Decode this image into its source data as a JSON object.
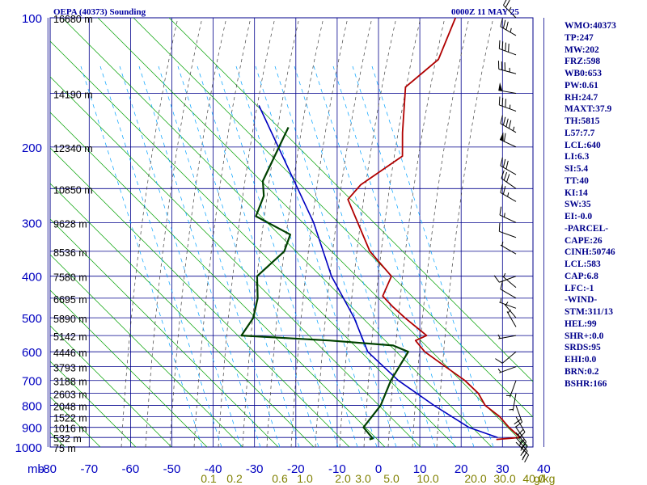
{
  "header": {
    "title_left": "OEPA (40373) Sounding",
    "title_right": "0000Z 11 MAY 25"
  },
  "indices": [
    "WMO:40373",
    "TP:247",
    "MW:202",
    "FRZ:598",
    "WB0:653",
    "PW:0.61",
    "RH:24.7",
    "MAXT:37.9",
    "TH:5815",
    "L57:7.7",
    "LCL:640",
    "LI:6.3",
    "SI:5.4",
    "TT:40",
    "KI:14",
    "SW:35",
    "EI:-0.0",
    "-PARCEL-",
    "CAPE:26",
    "CINH:50746",
    "LCL:583",
    "CAP:6.8",
    "LFC:-1",
    "-WIND-",
    "STM:311/13",
    "HEL:99",
    "SHR+:0.0",
    "SRDS:95",
    "EHI:0.0",
    "BRN:0.2",
    "BSHR:166"
  ],
  "colors": {
    "grid": "#00008b",
    "temperature": "#b00000",
    "dewpoint": "#004000",
    "parcel": "#0000c0",
    "dry_adiabat": "#00a000",
    "moist_adiabat": "#404040",
    "mixing_ratio": "#00a0ff",
    "axis_text": "#0000c0",
    "mixing_ratio_text": "#808000"
  },
  "chart_data": {
    "type": "skew-t",
    "pressure_ticks": [
      "100",
      "200",
      "300",
      "400",
      "500",
      "600",
      "700",
      "800",
      "900",
      "1000"
    ],
    "pressure_levels": [
      100,
      150,
      200,
      250,
      300,
      350,
      400,
      450,
      500,
      550,
      600,
      650,
      700,
      750,
      800,
      850,
      900,
      950,
      1000
    ],
    "temp_ticks": [
      "-80",
      "-70",
      "-60",
      "-50",
      "-40",
      "-30",
      "-20",
      "-10",
      "0",
      "10",
      "20",
      "30",
      "40"
    ],
    "x_axis_unit": "mb",
    "mixing_ratio_labels": [
      "0.1",
      "0.2",
      "0.6",
      "1.0",
      "2.0",
      "3.0",
      "5.0",
      "10.0",
      "20.0",
      "30.0",
      "40.0"
    ],
    "mixing_ratio_unit": "g/kg",
    "height_labels": [
      {
        "p": 100,
        "text": "16680 m"
      },
      {
        "p": 150,
        "text": "14190 m"
      },
      {
        "p": 200,
        "text": "12340 m"
      },
      {
        "p": 250,
        "text": "10850 m"
      },
      {
        "p": 300,
        "text": "9628 m"
      },
      {
        "p": 350,
        "text": "8536 m"
      },
      {
        "p": 400,
        "text": "7580 m"
      },
      {
        "p": 450,
        "text": "6695 m"
      },
      {
        "p": 500,
        "text": "5890 m"
      },
      {
        "p": 550,
        "text": "5142 m"
      },
      {
        "p": 600,
        "text": "4446 m"
      },
      {
        "p": 650,
        "text": "3793 m"
      },
      {
        "p": 700,
        "text": "3188 m"
      },
      {
        "p": 750,
        "text": "2603 m"
      },
      {
        "p": 800,
        "text": "2048 m"
      },
      {
        "p": 850,
        "text": "1522 m"
      },
      {
        "p": 900,
        "text": "1016 m"
      },
      {
        "p": 950,
        "text": "532 m"
      },
      {
        "p": 1000,
        "text": "75 m"
      }
    ],
    "temperature": [
      [
        100,
        -72.4
      ],
      [
        125,
        -67.7
      ],
      [
        145,
        -69.8
      ],
      [
        185,
        -60.9
      ],
      [
        210,
        -55.9
      ],
      [
        245,
        -59.9
      ],
      [
        265,
        -59.9
      ],
      [
        350,
        -43.6
      ],
      [
        400,
        -33.1
      ],
      [
        445,
        -31.0
      ],
      [
        470,
        -26.5
      ],
      [
        500,
        -21.0
      ],
      [
        550,
        -12.0
      ],
      [
        565,
        -13.6
      ],
      [
        600,
        -9.0
      ],
      [
        650,
        -0.8
      ],
      [
        700,
        6.8
      ],
      [
        750,
        12.8
      ],
      [
        800,
        17.0
      ],
      [
        850,
        22.9
      ],
      [
        900,
        27.4
      ],
      [
        950,
        32.3
      ],
      [
        960,
        26.9
      ]
    ],
    "dewpoint": [
      [
        180,
        -89.6
      ],
      [
        240,
        -84.4
      ],
      [
        260,
        -81.0
      ],
      [
        290,
        -78.6
      ],
      [
        320,
        -66.4
      ],
      [
        350,
        -64.3
      ],
      [
        400,
        -65.6
      ],
      [
        450,
        -60.8
      ],
      [
        500,
        -57.7
      ],
      [
        550,
        -56.8
      ],
      [
        565,
        -34.2
      ],
      [
        580,
        -18.0
      ],
      [
        600,
        -13.0
      ],
      [
        700,
        -11.1
      ],
      [
        800,
        -8.3
      ],
      [
        900,
        -7.8
      ],
      [
        955,
        -3.2
      ],
      [
        960,
        -3.8
      ]
    ],
    "parcel": [
      [
        160,
        -101.4
      ],
      [
        300,
        -63.3
      ],
      [
        400,
        -47.6
      ],
      [
        500,
        -33.3
      ],
      [
        600,
        -22.8
      ],
      [
        700,
        -9.3
      ],
      [
        800,
        4.6
      ],
      [
        900,
        17.7
      ],
      [
        950,
        26.8
      ]
    ],
    "wind_barbs": [
      {
        "p": 100,
        "dir": 315,
        "spd": 25
      },
      {
        "p": 110,
        "dir": 300,
        "spd": 35
      },
      {
        "p": 122,
        "dir": 290,
        "spd": 40
      },
      {
        "p": 135,
        "dir": 285,
        "spd": 35
      },
      {
        "p": 150,
        "dir": 280,
        "spd": 50
      },
      {
        "p": 165,
        "dir": 290,
        "spd": 35
      },
      {
        "p": 185,
        "dir": 300,
        "spd": 45
      },
      {
        "p": 200,
        "dir": 295,
        "spd": 60
      },
      {
        "p": 232,
        "dir": 300,
        "spd": 30
      },
      {
        "p": 250,
        "dir": 305,
        "spd": 30
      },
      {
        "p": 268,
        "dir": 300,
        "spd": 25
      },
      {
        "p": 300,
        "dir": 295,
        "spd": 15
      },
      {
        "p": 325,
        "dir": 290,
        "spd": 10
      },
      {
        "p": 355,
        "dir": 300,
        "spd": 5
      },
      {
        "p": 400,
        "dir": 250,
        "spd": 10
      },
      {
        "p": 425,
        "dir": 310,
        "spd": 5
      },
      {
        "p": 450,
        "dir": 300,
        "spd": 10
      },
      {
        "p": 475,
        "dir": 290,
        "spd": 5
      },
      {
        "p": 500,
        "dir": 320,
        "spd": 5
      },
      {
        "p": 525,
        "dir": 330,
        "spd": 5
      },
      {
        "p": 550,
        "dir": 260,
        "spd": 5
      },
      {
        "p": 600,
        "dir": 230,
        "spd": 10
      },
      {
        "p": 650,
        "dir": 250,
        "spd": 5
      },
      {
        "p": 700,
        "dir": 200,
        "spd": 5
      },
      {
        "p": 750,
        "dir": 190,
        "spd": 5
      },
      {
        "p": 800,
        "dir": 160,
        "spd": 20
      },
      {
        "p": 850,
        "dir": 150,
        "spd": 20
      },
      {
        "p": 900,
        "dir": 145,
        "spd": 25
      },
      {
        "p": 925,
        "dir": 140,
        "spd": 25
      },
      {
        "p": 950,
        "dir": 140,
        "spd": 20
      },
      {
        "p": 975,
        "dir": 135,
        "spd": 20
      }
    ]
  }
}
